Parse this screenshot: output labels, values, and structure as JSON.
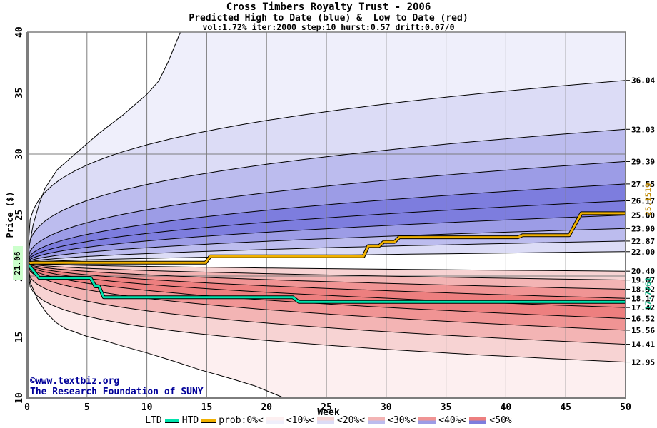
{
  "title": "Cross Timbers Royalty Trust - 2006",
  "subtitle": "Predicted High to Date (blue) &  Low to Date (red)",
  "stats": "vol:1.72% iter:2000 step:10 hurst:0.57 drift:0.07/0",
  "watermark": {
    "line1": "©www.textbiz.org",
    "line2": "The Research Foundation of SUNY"
  },
  "chart_data": {
    "type": "area",
    "description": "Monte-Carlo fan chart of predicted high-to-date (blue bands) and low-to-date (red bands) price quantiles by week, with realized HTD and LTD step lines",
    "x_axis": {
      "label": "Week",
      "min": 0,
      "max": 50,
      "ticks": [
        0,
        5,
        10,
        15,
        20,
        25,
        30,
        35,
        40,
        45,
        50
      ]
    },
    "y_axis": {
      "label": "Price ($)",
      "min": 10,
      "max": 40,
      "ticks": [
        10,
        15,
        20,
        25,
        30,
        35,
        40
      ]
    },
    "start_price": 21.06,
    "start_label": "21.06",
    "grid_color": "#7d7d7d",
    "high_fan": {
      "side": "blue",
      "quantiles": [
        {
          "label": "22.00",
          "value": 22.0,
          "exp": 0.55
        },
        {
          "label": "22.87",
          "value": 22.87,
          "exp": 0.52
        },
        {
          "label": "23.90",
          "value": 23.9,
          "exp": 0.5
        },
        {
          "label": "25.00",
          "value": 25.0,
          "exp": 0.48
        },
        {
          "label": "26.17",
          "value": 26.17,
          "exp": 0.46
        },
        {
          "label": "27.55",
          "value": 27.55,
          "exp": 0.44
        },
        {
          "label": "29.39",
          "value": 29.39,
          "exp": 0.4
        },
        {
          "label": "32.03",
          "value": 32.03,
          "exp": 0.33
        },
        {
          "label": "36.04",
          "value": 36.04,
          "exp": 0.27
        }
      ],
      "envelope": [
        [
          0,
          21.06
        ],
        [
          0.2,
          22.6
        ],
        [
          0.5,
          24.2
        ],
        [
          1,
          25.9
        ],
        [
          1.5,
          27.2
        ],
        [
          2.5,
          28.7
        ],
        [
          4,
          30
        ],
        [
          6,
          31.7
        ],
        [
          8,
          33.2
        ],
        [
          10,
          34.9
        ],
        [
          11,
          36.0
        ],
        [
          11.8,
          37.6
        ],
        [
          12.3,
          38.8
        ],
        [
          12.8,
          40
        ]
      ]
    },
    "low_fan": {
      "side": "red",
      "quantiles": [
        {
          "label": "20.40",
          "value": 20.4,
          "exp": 0.55
        },
        {
          "label": "19.67",
          "value": 19.67,
          "exp": 0.52
        },
        {
          "label": "18.92",
          "value": 18.92,
          "exp": 0.5
        },
        {
          "label": "18.17",
          "value": 18.17,
          "exp": 0.48
        },
        {
          "label": "17.42",
          "value": 17.42,
          "exp": 0.46
        },
        {
          "label": "16.52",
          "value": 16.52,
          "exp": 0.44
        },
        {
          "label": "15.56",
          "value": 15.56,
          "exp": 0.4
        },
        {
          "label": "14.41",
          "value": 14.41,
          "exp": 0.33
        },
        {
          "label": "12.95",
          "value": 12.95,
          "exp": 0.27
        }
      ],
      "envelope": [
        [
          0,
          21.06
        ],
        [
          0.3,
          19.4
        ],
        [
          0.9,
          18.0
        ],
        [
          1.6,
          17.0
        ],
        [
          2.4,
          16.2
        ],
        [
          3.2,
          15.7
        ],
        [
          5,
          15.05
        ],
        [
          6.5,
          14.7
        ],
        [
          8,
          14.25
        ],
        [
          10,
          13.7
        ],
        [
          12,
          13.1
        ],
        [
          14.5,
          12.3
        ],
        [
          17,
          11.6
        ],
        [
          19,
          11.0
        ],
        [
          21.5,
          10.0
        ]
      ]
    },
    "probability_colors": {
      "red": [
        "#fdeff0",
        "#f7d3d3",
        "#f3b4b4",
        "#f09494",
        "#ed7f7f"
      ],
      "blue": [
        "#efeffb",
        "#dcdcf6",
        "#bcbcee",
        "#9c9ce6",
        "#7d7dde"
      ],
      "band_level_order_inner_to_outer": [
        1,
        2,
        3,
        4,
        4,
        3,
        2,
        1,
        0
      ]
    },
    "htd": {
      "name": "HTD",
      "color": "#f0b000",
      "final_value": 25.1519,
      "final_label": "25.1519",
      "points": [
        [
          0,
          21.06
        ],
        [
          0.5,
          21.1
        ],
        [
          14.9,
          21.1
        ],
        [
          15.3,
          21.62
        ],
        [
          28.1,
          21.62
        ],
        [
          28.5,
          22.46
        ],
        [
          29.4,
          22.46
        ],
        [
          29.8,
          22.8
        ],
        [
          30.7,
          22.8
        ],
        [
          31.1,
          23.18
        ],
        [
          41.0,
          23.18
        ],
        [
          41.4,
          23.35
        ],
        [
          45.3,
          23.35
        ],
        [
          46.3,
          25.15
        ],
        [
          50,
          25.15
        ]
      ]
    },
    "ltd": {
      "name": "LTD",
      "color": "#00e2ac",
      "final_value": 17.7761,
      "final_label": "17.7761",
      "points": [
        [
          0,
          21.06
        ],
        [
          1.0,
          19.85
        ],
        [
          5.3,
          19.85
        ],
        [
          5.7,
          19.15
        ],
        [
          6.0,
          19.15
        ],
        [
          6.4,
          18.26
        ],
        [
          22.2,
          18.26
        ],
        [
          22.7,
          17.88
        ],
        [
          50,
          17.88
        ]
      ]
    },
    "legend": {
      "ltd_label": "LTD",
      "htd_label": "HTD",
      "prob_labels": [
        "prob:0%<",
        "<10%<",
        "<20%<",
        "<30%<",
        "<40%<",
        "<50%"
      ]
    }
  }
}
